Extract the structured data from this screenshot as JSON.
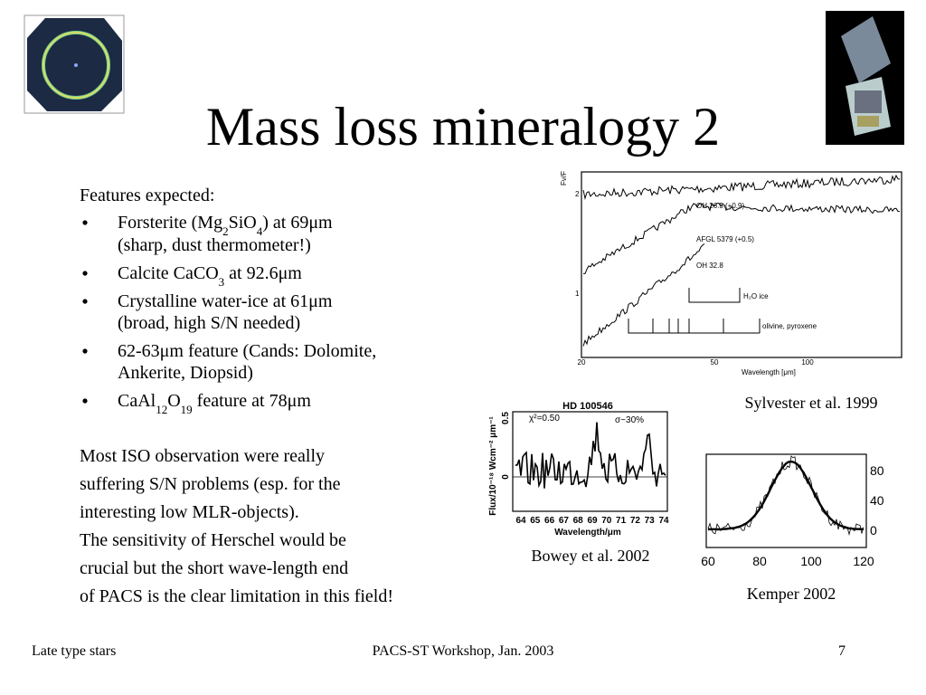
{
  "title": "Mass loss mineralogy 2",
  "body": {
    "intro": "Features expected:",
    "bullets": [
      {
        "lines": [
          [
            {
              "text": "Forsterite (Mg"
            },
            {
              "sub": "2"
            },
            {
              "text": "SiO"
            },
            {
              "sub": "4"
            },
            {
              "text": ") at 69μm"
            }
          ],
          [
            {
              "text": "(sharp, dust thermometer!)"
            }
          ]
        ]
      },
      {
        "lines": [
          [
            {
              "text": "Calcite CaCO"
            },
            {
              "sub": "3"
            },
            {
              "text": " at 92.6μm"
            }
          ]
        ]
      },
      {
        "lines": [
          [
            {
              "text": "Crystalline water-ice at 61μm"
            }
          ],
          [
            {
              "text": "(broad, high S/N needed)"
            }
          ]
        ]
      },
      {
        "lines": [
          [
            {
              "text": "62-63μm feature (Cands: Dolomite,"
            }
          ],
          [
            {
              "text": "Ankerite, Diopsid)"
            }
          ]
        ]
      },
      {
        "lines": [
          [
            {
              "text": "CaAl"
            },
            {
              "sub": "12"
            },
            {
              "text": "O"
            },
            {
              "sub": "19"
            },
            {
              "text": " feature at 78μm"
            }
          ]
        ]
      }
    ],
    "paragraph": [
      "Most ISO observation were really",
      "suffering S/N problems (esp. for the",
      "interesting low MLR-objects).",
      "The sensitivity of Herschel would be",
      "crucial but the short wave-length end",
      "of PACS is the clear limitation in this field!"
    ]
  },
  "figures": [
    {
      "caption": "Sylvester et al. 1999",
      "xticks": [
        20,
        50,
        100
      ],
      "yticks": [
        2,
        1
      ],
      "labels": [
        "OH 26.5 (+0.9)",
        "AFGL 5379 (+0.5)",
        "OH 32.8",
        "H₂O ice",
        "olivine, pyroxene",
        "Wavelength [μm]",
        "Fν/F"
      ]
    },
    {
      "caption": "Bowey et al. 2002",
      "xticks": [
        64,
        65,
        66,
        67,
        68,
        69,
        70,
        71,
        72,
        73,
        74
      ],
      "yticks": [
        0.5,
        0
      ],
      "labels": [
        "HD 100546",
        "χ²=0.50",
        "σ~30%",
        "Wavelength/μm",
        "Flux/10⁻¹⁸ Wcm⁻² μm⁻¹"
      ]
    },
    {
      "caption": "Kemper 2002",
      "xticks": [
        60,
        80,
        100,
        120
      ],
      "yticks": [
        80,
        40,
        0
      ],
      "labels": []
    }
  ],
  "footer": {
    "left": "Late type stars",
    "center": "PACS-ST Workshop, Jan. 2003",
    "right": "7"
  }
}
